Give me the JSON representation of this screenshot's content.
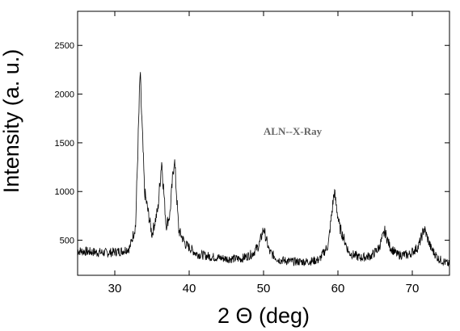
{
  "chart_data": {
    "type": "line",
    "title": "",
    "xlabel": "2 Θ (deg)",
    "ylabel": "Intensity (a. u.)",
    "annotation": "ALN--X-Ray",
    "xlim": [
      25,
      75
    ],
    "ylim": [
      140,
      2850
    ],
    "x_ticks": [
      30,
      40,
      50,
      60,
      70
    ],
    "y_ticks": [
      500,
      1000,
      1500,
      2000,
      2500
    ],
    "grid": false,
    "legend": "none",
    "line_color": "#000000",
    "series": [
      {
        "x": [
          25,
          27,
          29,
          31,
          32,
          32.8,
          33.4,
          34,
          35,
          35.8,
          36.3,
          36.9,
          37.4,
          38.0,
          38.6,
          39.5,
          41,
          43,
          45,
          47,
          48.5,
          49.4,
          50.0,
          50.8,
          52,
          54,
          56,
          57.5,
          58.7,
          59.5,
          60.2,
          61.5,
          63,
          64.5,
          65.5,
          66.3,
          67,
          68,
          69.5,
          70.8,
          71.6,
          72.5,
          73.5,
          75
        ],
        "y": [
          390,
          380,
          370,
          390,
          420,
          650,
          2200,
          1000,
          560,
          820,
          1320,
          650,
          760,
          1350,
          600,
          460,
          360,
          330,
          310,
          310,
          360,
          450,
          620,
          380,
          300,
          280,
          280,
          300,
          450,
          1000,
          640,
          370,
          320,
          340,
          420,
          590,
          430,
          350,
          350,
          430,
          620,
          420,
          310,
          250
        ]
      }
    ]
  }
}
